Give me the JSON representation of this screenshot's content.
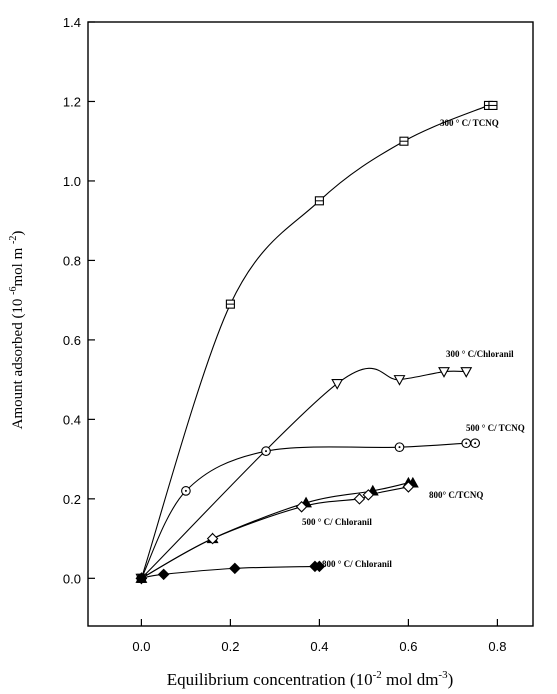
{
  "chart_data": {
    "type": "line",
    "xlabel": {
      "pre": "Equilibrium concentration (10",
      "sup1": "-2",
      "mid": " mol dm",
      "sup2": "-3",
      "post": ")"
    },
    "ylabel": {
      "pre": "Amount adsorbed (10 ",
      "sup1": "-6",
      "mid": "mol m ",
      "sup2": "-2",
      "post": ")"
    },
    "xlim": [
      -0.12,
      0.88
    ],
    "ylim": [
      -0.12,
      1.4
    ],
    "xticks": [
      "0.0",
      "0.2",
      "0.4",
      "0.6",
      "0.8"
    ],
    "yticks": [
      "0.0",
      "0.2",
      "0.4",
      "0.6",
      "0.8",
      "1.0",
      "1.2",
      "1.4"
    ],
    "grid": false,
    "series": [
      {
        "name": "300 ° C/ TCNQ",
        "marker": "square",
        "x": [
          0.0,
          0.2,
          0.4,
          0.59,
          0.78,
          0.79
        ],
        "y": [
          0.0,
          0.69,
          0.95,
          1.1,
          1.19,
          1.19
        ]
      },
      {
        "name": "300 ° C/Chloranil",
        "marker": "triangle-down",
        "x": [
          0.0,
          0.44,
          0.58,
          0.68,
          0.73
        ],
        "y": [
          0.0,
          0.49,
          0.5,
          0.52,
          0.52
        ]
      },
      {
        "name": "500 ° C/ TCNQ",
        "marker": "circle",
        "x": [
          0.0,
          0.1,
          0.28,
          0.58,
          0.73,
          0.75
        ],
        "y": [
          0.0,
          0.22,
          0.32,
          0.33,
          0.34,
          0.34
        ]
      },
      {
        "name": "800° C/TCNQ",
        "marker": "triangle-up",
        "x": [
          0.0,
          0.16,
          0.37,
          0.52,
          0.6,
          0.61
        ],
        "y": [
          0.0,
          0.1,
          0.19,
          0.22,
          0.24,
          0.24
        ]
      },
      {
        "name": "500 ° C/ Chloranil",
        "marker": "diamond-open",
        "x": [
          0.0,
          0.16,
          0.36,
          0.49,
          0.51,
          0.6
        ],
        "y": [
          0.0,
          0.1,
          0.18,
          0.2,
          0.21,
          0.23
        ]
      },
      {
        "name": "800 ° C/ Chloranil",
        "marker": "diamond-filled",
        "x": [
          0.0,
          0.05,
          0.21,
          0.39,
          0.4
        ],
        "y": [
          0.0,
          0.01,
          0.025,
          0.03,
          0.03
        ]
      }
    ]
  }
}
